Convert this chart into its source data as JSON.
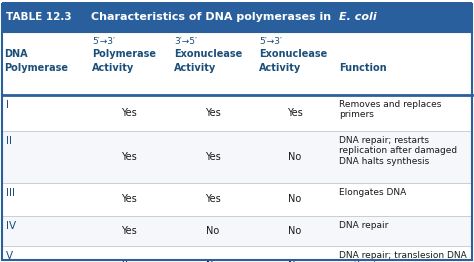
{
  "title_label": "TABLE 12.3",
  "title_text": "Characteristics of DNA polymerases in ",
  "title_italic": "E. coli",
  "header_bg": "#2a5f9e",
  "header_text_color": "#ffffff",
  "table_bg": "#ffffff",
  "header_area_bg": "#ffffff",
  "border_color": "#2a5f9e",
  "text_color": "#1a1a1a",
  "col_header_color": "#1a4f7a",
  "rows": [
    [
      "I",
      "Yes",
      "Yes",
      "Yes",
      "Removes and replaces\nprimers"
    ],
    [
      "II",
      "Yes",
      "Yes",
      "No",
      "DNA repair; restarts\nreplication after damaged\nDNA halts synthesis"
    ],
    [
      "III",
      "Yes",
      "Yes",
      "No",
      "Elongates DNA"
    ],
    [
      "IV",
      "Yes",
      "No",
      "No",
      "DNA repair"
    ],
    [
      "V",
      "Yes",
      "No",
      "No",
      "DNA repair; translesion DNA\nsynthesis"
    ]
  ],
  "figsize": [
    4.74,
    2.62
  ],
  "dpi": 100
}
